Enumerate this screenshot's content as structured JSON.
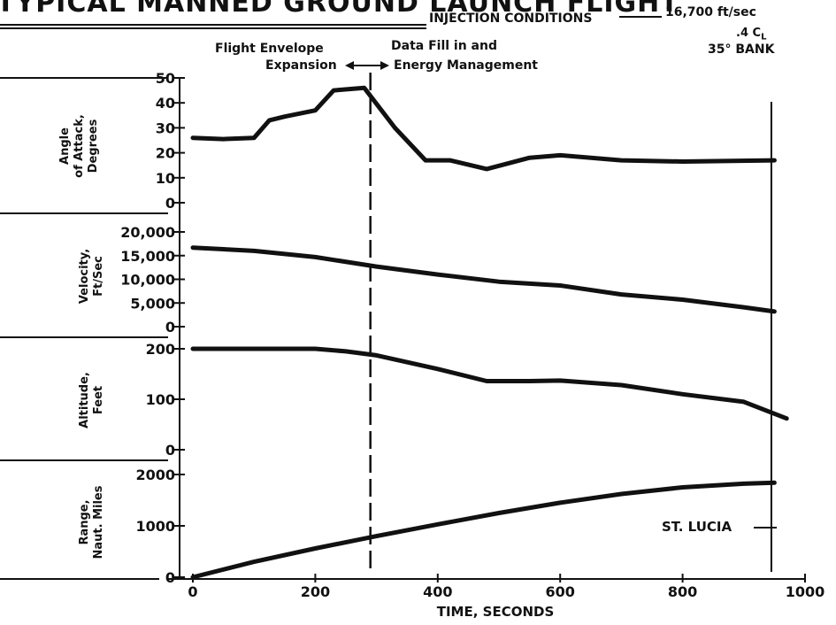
{
  "title": "TYPICAL MANNED GROUND LAUNCH FLIGHT",
  "injection": {
    "label": "INJECTION CONDITIONS",
    "speed": "16,700 ft/sec",
    "cl": ".4 C",
    "cl_sub": "L",
    "bank": "35° BANK"
  },
  "annotations": {
    "flight_envelope_line1": "Flight Envelope",
    "flight_envelope_line2": "Expansion",
    "data_fill_line1": "Data Fill in and",
    "data_fill_line2": "Energy Management",
    "st_lucia": "ST. LUCIA"
  },
  "chart_data": {
    "type": "line",
    "xlabel": "TIME, SECONDS",
    "x_ticks": [
      "0",
      "200",
      "400",
      "600",
      "800",
      "1000"
    ],
    "x_tick_values": [
      0,
      200,
      400,
      600,
      800,
      1000
    ],
    "xlim": [
      0,
      1000
    ],
    "vertical_markers": [
      290,
      945
    ],
    "panels": [
      {
        "name": "angle-of-attack",
        "ylabel_line1": "Angle",
        "ylabel_line2": "of Attack,",
        "ylabel_line3": "Degrees",
        "ylim": [
          0,
          50
        ],
        "y_ticks": [
          "0",
          "10",
          "20",
          "30",
          "40",
          "50"
        ],
        "y_tick_values": [
          0,
          10,
          20,
          30,
          40,
          50
        ],
        "x": [
          0,
          50,
          100,
          125,
          150,
          200,
          230,
          280,
          330,
          380,
          420,
          480,
          550,
          600,
          700,
          800,
          950
        ],
        "y": [
          26,
          25.5,
          26,
          33,
          34.5,
          37,
          45,
          46,
          30,
          17,
          17,
          13.5,
          18,
          19,
          17,
          16.5,
          17
        ]
      },
      {
        "name": "velocity",
        "ylabel_line1": "Velocity,",
        "ylabel_line2": "Ft/Sec",
        "ylim": [
          0,
          20000
        ],
        "y_ticks": [
          "0",
          "5,000",
          "10,000",
          "15,000",
          "20,000"
        ],
        "y_tick_values": [
          0,
          5000,
          10000,
          15000,
          20000
        ],
        "x": [
          0,
          100,
          200,
          300,
          400,
          500,
          600,
          700,
          800,
          900,
          950
        ],
        "y": [
          16700,
          16000,
          14700,
          12700,
          11000,
          9500,
          8700,
          6800,
          5700,
          4100,
          3200
        ]
      },
      {
        "name": "altitude",
        "ylabel_line1": "Altitude,",
        "ylabel_line2": "Feet",
        "ylim": [
          0,
          200
        ],
        "y_ticks": [
          "0",
          "100",
          "200"
        ],
        "y_tick_values": [
          0,
          100,
          200
        ],
        "x": [
          0,
          100,
          200,
          250,
          300,
          400,
          480,
          550,
          600,
          700,
          800,
          900,
          970
        ],
        "y": [
          200,
          200,
          200,
          195,
          187,
          160,
          136,
          136,
          137,
          128,
          110,
          95,
          62
        ]
      },
      {
        "name": "range",
        "ylabel_line1": "Range,",
        "ylabel_line2": "Naut. Miles",
        "ylim": [
          0,
          2000
        ],
        "y_ticks": [
          "0",
          "1000",
          "2000"
        ],
        "y_tick_values": [
          0,
          1000,
          2000
        ],
        "x": [
          0,
          100,
          200,
          300,
          400,
          500,
          600,
          700,
          800,
          900,
          950
        ],
        "y": [
          0,
          300,
          560,
          800,
          1030,
          1250,
          1450,
          1620,
          1750,
          1820,
          1840
        ]
      }
    ]
  }
}
